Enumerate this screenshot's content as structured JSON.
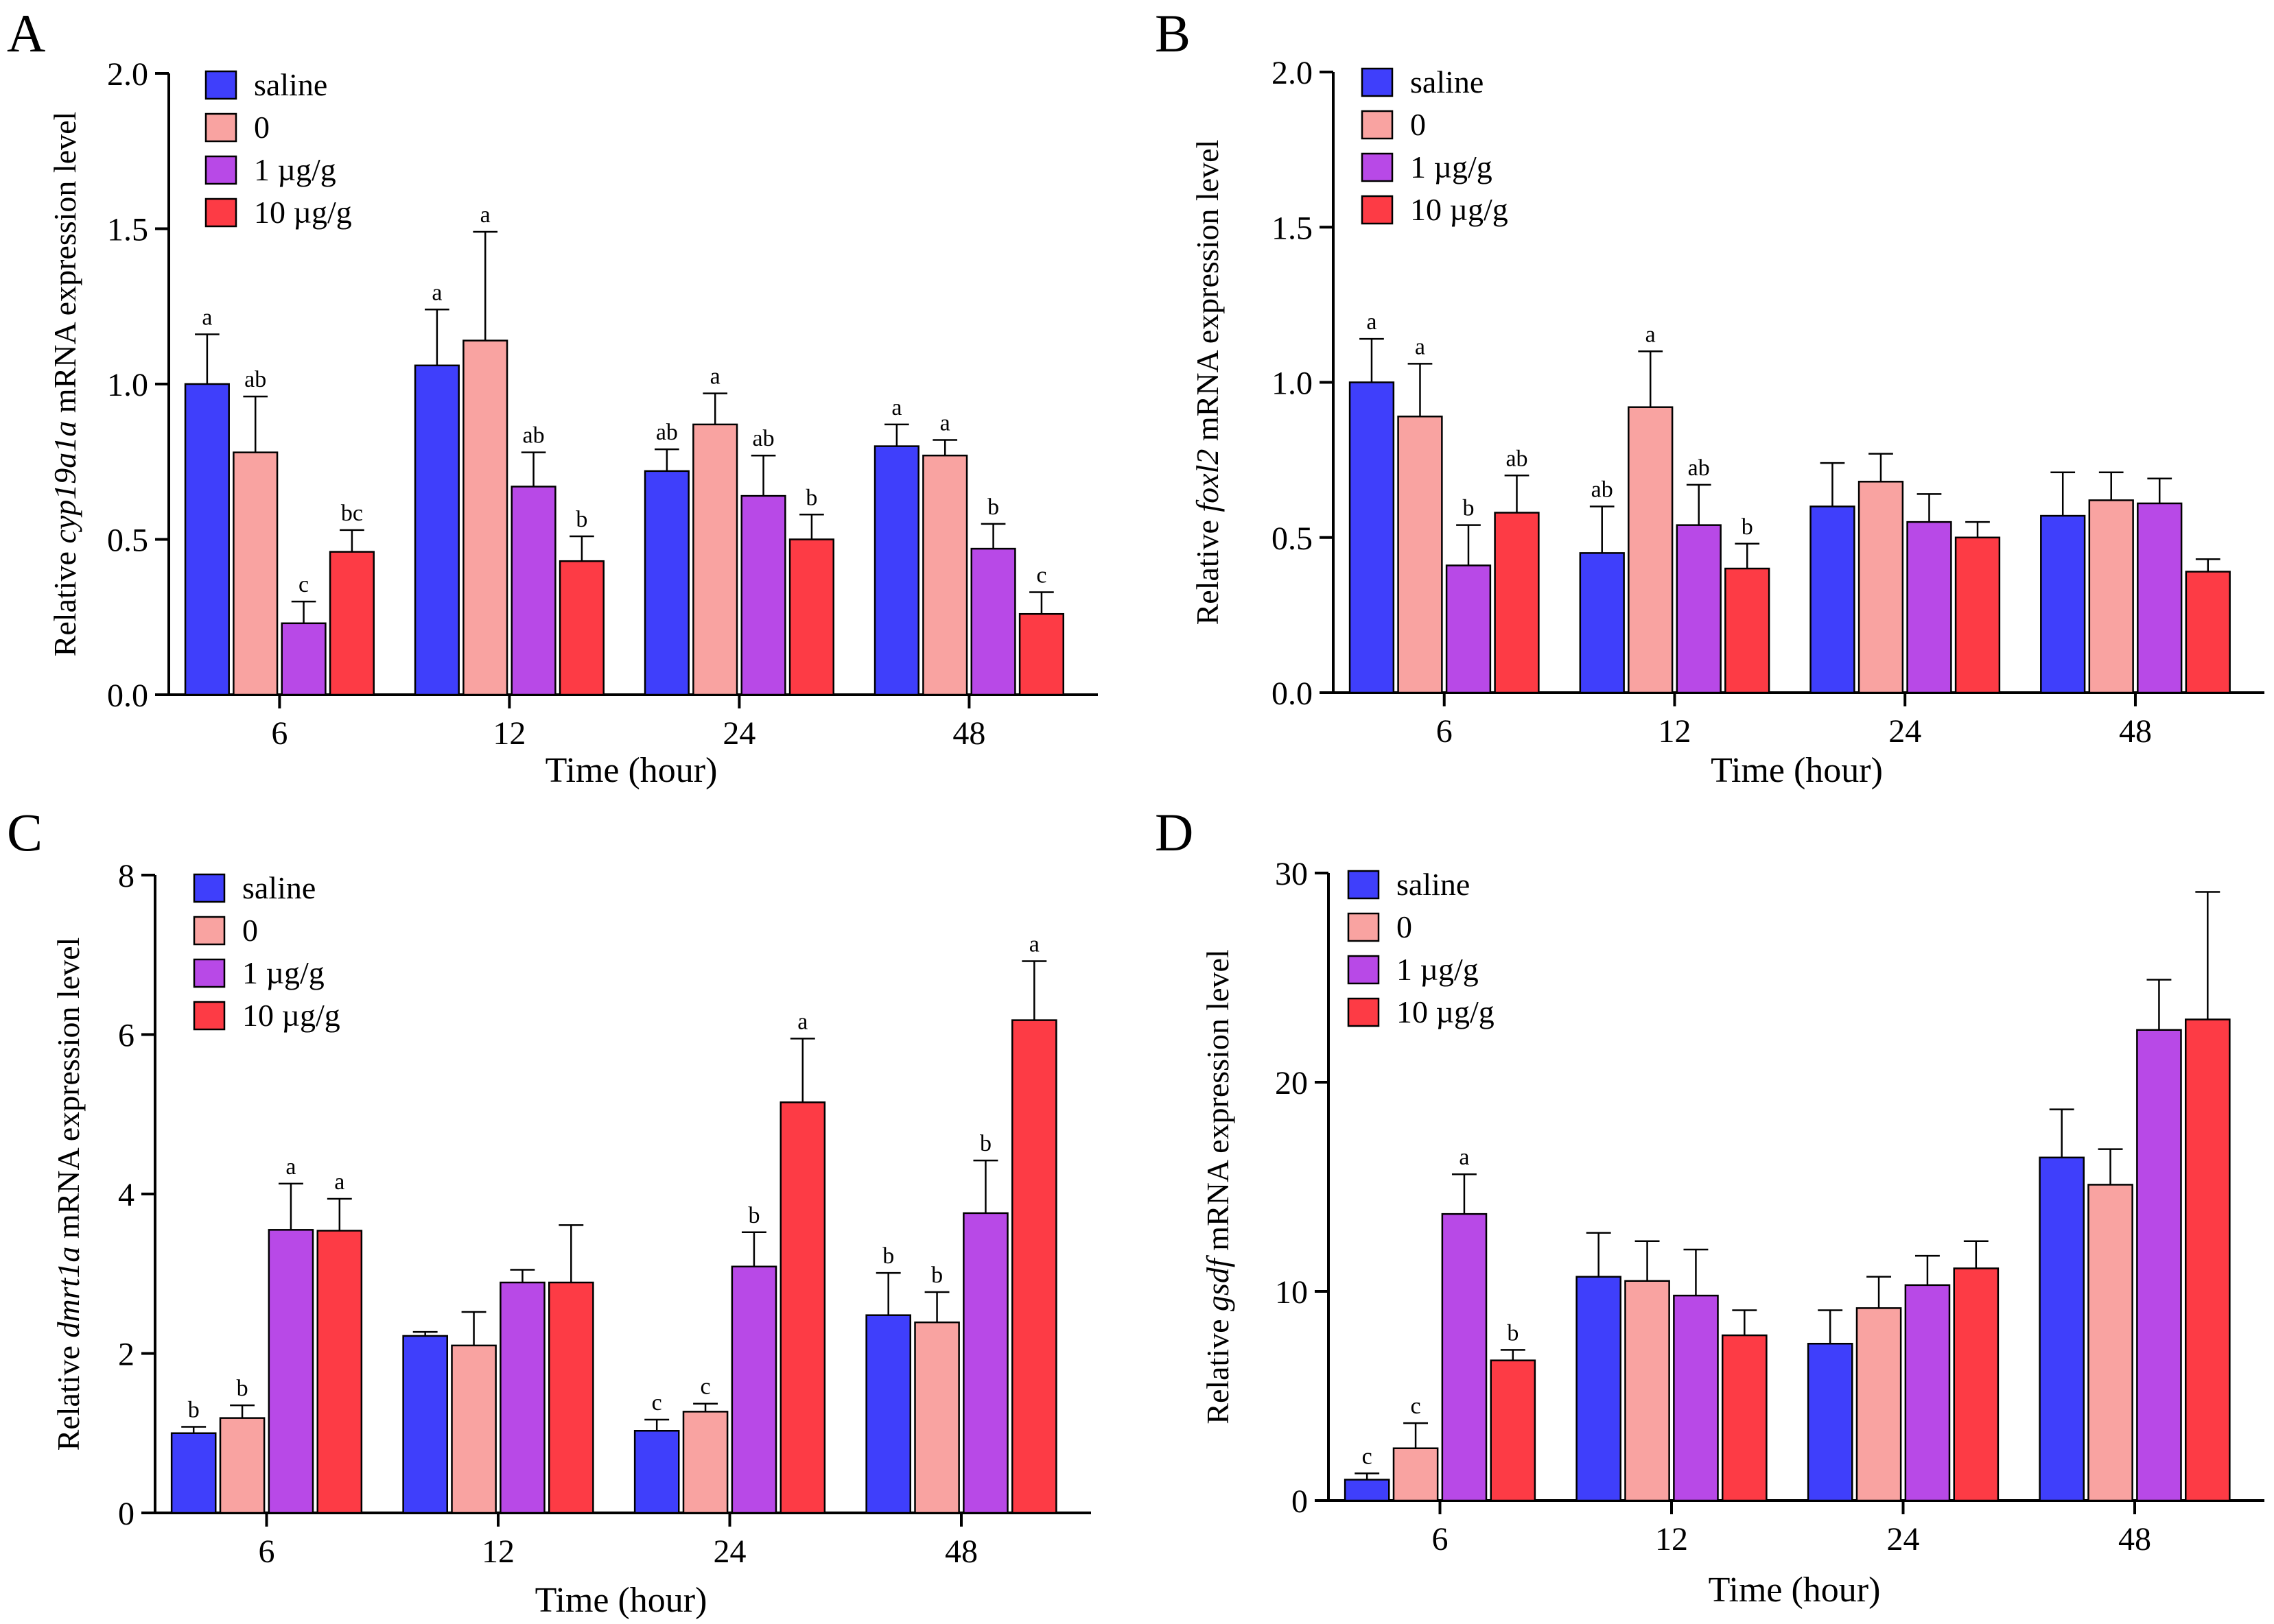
{
  "legend_colors": {
    "saline": "#3f3ffb",
    "0": "#f9a3a1",
    "1 µg/g": "#b849e7",
    "10 µg/g": "#fd3b45"
  },
  "chart_data": [
    {
      "panel": "A",
      "type": "bar",
      "gene": "cyp19a1a",
      "ylabel_prefix": "Relative ",
      "ylabel_suffix": " mRNA expression level",
      "xlabel": "Time (hour)",
      "categories": [
        "6",
        "12",
        "24",
        "48"
      ],
      "ylim": [
        0,
        2.0
      ],
      "yticks": [
        "0.0",
        "0.5",
        "1.0",
        "1.5",
        "2.0"
      ],
      "tick_values": [
        0,
        0.5,
        1.0,
        1.5,
        2.0
      ],
      "series": [
        {
          "name": "saline",
          "color": "#3f3ffb",
          "values": [
            1.0,
            1.06,
            0.72,
            0.8
          ],
          "errors": [
            0.16,
            0.18,
            0.07,
            0.07
          ],
          "labels": [
            "a",
            "a",
            "ab",
            "a"
          ]
        },
        {
          "name": "0",
          "color": "#f9a3a1",
          "values": [
            0.78,
            1.14,
            0.87,
            0.77
          ],
          "errors": [
            0.18,
            0.35,
            0.1,
            0.05
          ],
          "labels": [
            "ab",
            "a",
            "a",
            "a"
          ]
        },
        {
          "name": "1 µg/g",
          "color": "#b849e7",
          "values": [
            0.23,
            0.67,
            0.64,
            0.47
          ],
          "errors": [
            0.07,
            0.11,
            0.13,
            0.08
          ],
          "labels": [
            "c",
            "ab",
            "ab",
            "b"
          ]
        },
        {
          "name": "10 µg/g",
          "color": "#fd3b45",
          "values": [
            0.46,
            0.43,
            0.5,
            0.26
          ],
          "errors": [
            0.07,
            0.08,
            0.08,
            0.07
          ],
          "labels": [
            "bc",
            "b",
            "b",
            "c"
          ]
        }
      ]
    },
    {
      "panel": "B",
      "type": "bar",
      "gene": "foxl2",
      "ylabel_prefix": "Relative ",
      "ylabel_suffix": " mRNA expression level",
      "xlabel": "Time (hour)",
      "categories": [
        "6",
        "12",
        "24",
        "48"
      ],
      "ylim": [
        0,
        2.0
      ],
      "yticks": [
        "0.0",
        "0.5",
        "1.0",
        "1.5",
        "2.0"
      ],
      "tick_values": [
        0,
        0.5,
        1.0,
        1.5,
        2.0
      ],
      "series": [
        {
          "name": "saline",
          "color": "#3f3ffb",
          "values": [
            1.0,
            0.45,
            0.6,
            0.57
          ],
          "errors": [
            0.14,
            0.15,
            0.14,
            0.14
          ],
          "labels": [
            "a",
            "ab",
            "",
            ""
          ]
        },
        {
          "name": "0",
          "color": "#f9a3a1",
          "values": [
            0.89,
            0.92,
            0.68,
            0.62
          ],
          "errors": [
            0.17,
            0.18,
            0.09,
            0.09
          ],
          "labels": [
            "a",
            "a",
            "",
            ""
          ]
        },
        {
          "name": "1 µg/g",
          "color": "#b849e7",
          "values": [
            0.41,
            0.54,
            0.55,
            0.61
          ],
          "errors": [
            0.13,
            0.13,
            0.09,
            0.08
          ],
          "labels": [
            "b",
            "ab",
            "",
            ""
          ]
        },
        {
          "name": "10 µg/g",
          "color": "#fd3b45",
          "values": [
            0.58,
            0.4,
            0.5,
            0.39
          ],
          "errors": [
            0.12,
            0.08,
            0.05,
            0.04
          ],
          "labels": [
            "ab",
            "b",
            "",
            ""
          ]
        }
      ]
    },
    {
      "panel": "C",
      "type": "bar",
      "gene": "dmrt1a",
      "ylabel_prefix": "Relative ",
      "ylabel_suffix": " mRNA expression level",
      "xlabel": "Time (hour)",
      "categories": [
        "6",
        "12",
        "24",
        "48"
      ],
      "ylim": [
        0,
        8
      ],
      "yticks": [
        "0",
        "2",
        "4",
        "6",
        "8"
      ],
      "tick_values": [
        0,
        2,
        4,
        6,
        8
      ],
      "series": [
        {
          "name": "saline",
          "color": "#3f3ffb",
          "values": [
            1.0,
            2.22,
            1.03,
            2.48
          ],
          "errors": [
            0.08,
            0.05,
            0.14,
            0.53
          ],
          "labels": [
            "b",
            "",
            "c",
            "b"
          ]
        },
        {
          "name": "0",
          "color": "#f9a3a1",
          "values": [
            1.19,
            2.1,
            1.27,
            2.39
          ],
          "errors": [
            0.16,
            0.42,
            0.1,
            0.38
          ],
          "labels": [
            "b",
            "",
            "c",
            "b"
          ]
        },
        {
          "name": "1 µg/g",
          "color": "#b849e7",
          "values": [
            3.55,
            2.89,
            3.09,
            3.76
          ],
          "errors": [
            0.58,
            0.16,
            0.43,
            0.66
          ],
          "labels": [
            "a",
            "",
            "b",
            "b"
          ]
        },
        {
          "name": "10 µg/g",
          "color": "#fd3b45",
          "values": [
            3.54,
            2.89,
            5.15,
            6.18
          ],
          "errors": [
            0.4,
            0.72,
            0.8,
            0.74
          ],
          "labels": [
            "a",
            "",
            "a",
            "a"
          ]
        }
      ]
    },
    {
      "panel": "D",
      "type": "bar",
      "gene": "gsdf",
      "ylabel_prefix": "Relative ",
      "ylabel_suffix": " mRNA expression level",
      "xlabel": "Time (hour)",
      "categories": [
        "6",
        "12",
        "24",
        "48"
      ],
      "ylim": [
        0,
        30
      ],
      "yticks": [
        "0",
        "10",
        "20",
        "30"
      ],
      "tick_values": [
        0,
        10,
        20,
        30
      ],
      "series": [
        {
          "name": "saline",
          "color": "#3f3ffb",
          "values": [
            1.0,
            10.7,
            7.5,
            16.4
          ],
          "errors": [
            0.3,
            2.1,
            1.6,
            2.3
          ],
          "labels": [
            "c",
            "",
            "",
            ""
          ]
        },
        {
          "name": "0",
          "color": "#f9a3a1",
          "values": [
            2.5,
            10.5,
            9.2,
            15.1
          ],
          "errors": [
            1.2,
            1.9,
            1.5,
            1.7
          ],
          "labels": [
            "c",
            "",
            "",
            ""
          ]
        },
        {
          "name": "1 µg/g",
          "color": "#b849e7",
          "values": [
            13.7,
            9.8,
            10.3,
            22.5
          ],
          "errors": [
            1.9,
            2.2,
            1.4,
            2.4
          ],
          "labels": [
            "a",
            "",
            "",
            ""
          ]
        },
        {
          "name": "10 µg/g",
          "color": "#fd3b45",
          "values": [
            6.7,
            7.9,
            11.1,
            23.0
          ],
          "errors": [
            0.5,
            1.2,
            1.3,
            6.1
          ],
          "labels": [
            "b",
            "",
            "",
            ""
          ]
        }
      ]
    }
  ]
}
